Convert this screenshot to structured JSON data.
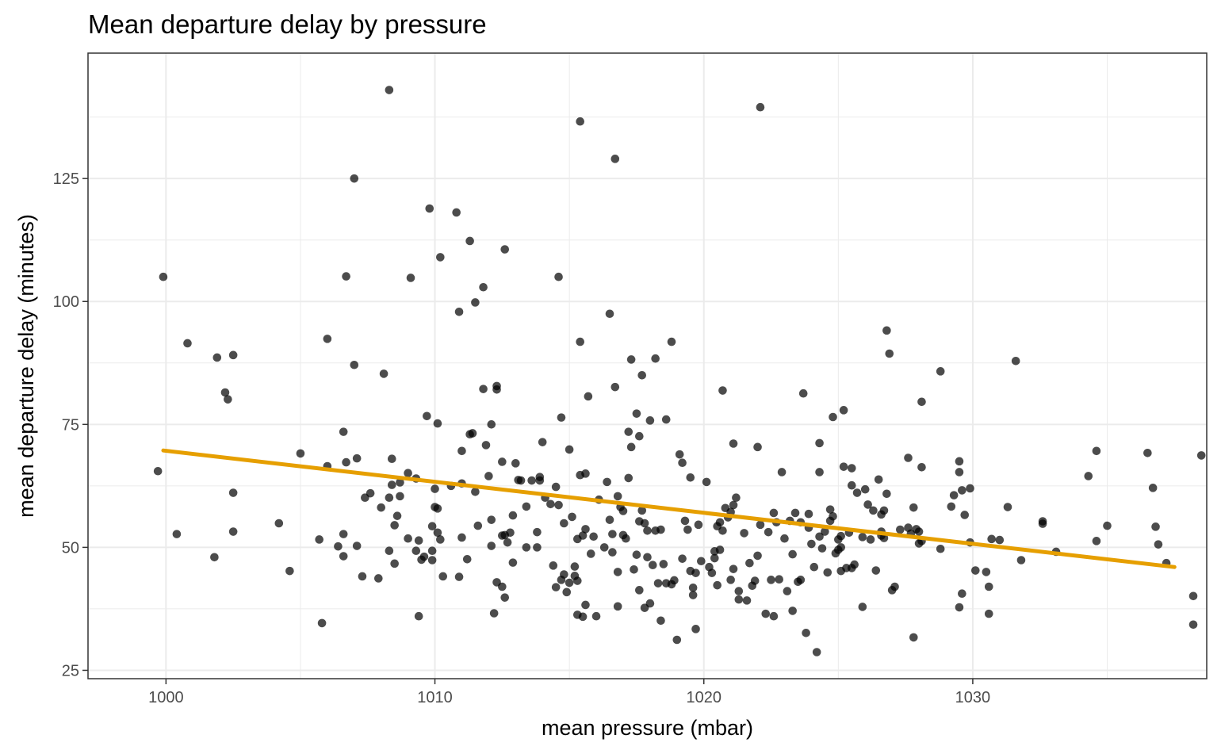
{
  "chart_data": {
    "type": "scatter",
    "title": "Mean departure delay by pressure",
    "xlabel": "mean pressure (mbar)",
    "ylabel": "mean departure delay (minutes)",
    "xlim": [
      997.1,
      1038.7
    ],
    "ylim": [
      23.3,
      150.5
    ],
    "xticks": [
      1000,
      1010,
      1020,
      1030
    ],
    "yticks": [
      25,
      50,
      75,
      100,
      125
    ],
    "grid": true,
    "legend": "none",
    "colors": {
      "points": "#000000",
      "trend": "#E69F00"
    },
    "trend_line": {
      "x": [
        999.9,
        1037.5
      ],
      "y": [
        69.7,
        46.0
      ]
    },
    "points": [
      [
        999.9,
        105.0
      ],
      [
        999.7,
        65.5
      ],
      [
        1000.4,
        52.7
      ],
      [
        1000.8,
        91.5
      ],
      [
        1001.8,
        48.0
      ],
      [
        1001.9,
        88.6
      ],
      [
        1002.2,
        81.5
      ],
      [
        1002.3,
        80.1
      ],
      [
        1002.5,
        89.1
      ],
      [
        1002.5,
        61.1
      ],
      [
        1002.5,
        53.2
      ],
      [
        1004.2,
        54.9
      ],
      [
        1004.6,
        45.2
      ],
      [
        1005.0,
        69.1
      ],
      [
        1005.7,
        51.6
      ],
      [
        1005.8,
        34.6
      ],
      [
        1006.0,
        66.5
      ],
      [
        1006.0,
        92.4
      ],
      [
        1006.4,
        50.2
      ],
      [
        1006.6,
        52.7
      ],
      [
        1006.6,
        73.5
      ],
      [
        1006.6,
        48.2
      ],
      [
        1006.7,
        67.3
      ],
      [
        1006.7,
        105.1
      ],
      [
        1007.0,
        125.0
      ],
      [
        1007.0,
        87.1
      ],
      [
        1007.1,
        50.3
      ],
      [
        1007.1,
        68.1
      ],
      [
        1007.3,
        44.1
      ],
      [
        1007.4,
        60.1
      ],
      [
        1007.6,
        61.0
      ],
      [
        1007.9,
        43.7
      ],
      [
        1008.0,
        58.1
      ],
      [
        1008.1,
        85.3
      ],
      [
        1008.3,
        60.1
      ],
      [
        1008.3,
        49.3
      ],
      [
        1008.4,
        68.0
      ],
      [
        1008.4,
        62.7
      ],
      [
        1008.5,
        54.5
      ],
      [
        1008.5,
        46.7
      ],
      [
        1008.6,
        56.4
      ],
      [
        1008.7,
        60.4
      ],
      [
        1008.7,
        63.2
      ],
      [
        1008.3,
        143.0
      ],
      [
        1009.0,
        65.1
      ],
      [
        1009.0,
        51.8
      ],
      [
        1009.1,
        104.8
      ],
      [
        1009.3,
        64.0
      ],
      [
        1009.3,
        49.3
      ],
      [
        1009.4,
        36.0
      ],
      [
        1009.4,
        51.4
      ],
      [
        1009.5,
        47.5
      ],
      [
        1009.6,
        48.1
      ],
      [
        1009.7,
        76.7
      ],
      [
        1009.8,
        118.9
      ],
      [
        1009.9,
        54.3
      ],
      [
        1009.9,
        49.3
      ],
      [
        1009.9,
        47.4
      ],
      [
        1010.0,
        58.2
      ],
      [
        1010.0,
        61.9
      ],
      [
        1010.1,
        57.9
      ],
      [
        1010.1,
        53.0
      ],
      [
        1010.1,
        75.2
      ],
      [
        1010.2,
        51.6
      ],
      [
        1010.2,
        109.0
      ],
      [
        1010.3,
        44.1
      ],
      [
        1010.6,
        62.5
      ],
      [
        1010.8,
        118.1
      ],
      [
        1010.9,
        97.9
      ],
      [
        1010.9,
        44.0
      ],
      [
        1011.0,
        63.0
      ],
      [
        1011.0,
        69.6
      ],
      [
        1011.0,
        52.0
      ],
      [
        1011.2,
        47.6
      ],
      [
        1011.3,
        112.3
      ],
      [
        1011.3,
        73.0
      ],
      [
        1011.4,
        73.2
      ],
      [
        1011.5,
        61.3
      ],
      [
        1011.5,
        99.8
      ],
      [
        1011.6,
        54.4
      ],
      [
        1011.8,
        102.9
      ],
      [
        1011.8,
        82.2
      ],
      [
        1011.9,
        70.8
      ],
      [
        1012.0,
        64.5
      ],
      [
        1012.1,
        75.0
      ],
      [
        1012.1,
        55.6
      ],
      [
        1012.1,
        50.3
      ],
      [
        1012.2,
        36.6
      ],
      [
        1012.3,
        42.9
      ],
      [
        1012.3,
        82.1
      ],
      [
        1012.3,
        82.8
      ],
      [
        1012.5,
        52.4
      ],
      [
        1012.5,
        67.4
      ],
      [
        1012.5,
        42.0
      ],
      [
        1012.6,
        39.8
      ],
      [
        1012.6,
        52.5
      ],
      [
        1012.6,
        110.6
      ],
      [
        1012.7,
        51.0
      ],
      [
        1012.8,
        53.0
      ],
      [
        1012.9,
        46.9
      ],
      [
        1012.9,
        56.5
      ],
      [
        1013.0,
        67.1
      ],
      [
        1013.1,
        63.7
      ],
      [
        1013.2,
        63.6
      ],
      [
        1013.4,
        50.0
      ],
      [
        1013.4,
        58.3
      ],
      [
        1013.6,
        63.6
      ],
      [
        1013.8,
        53.1
      ],
      [
        1013.8,
        50.0
      ],
      [
        1013.9,
        64.3
      ],
      [
        1013.9,
        63.6
      ],
      [
        1014.0,
        71.4
      ],
      [
        1014.1,
        60.1
      ],
      [
        1014.3,
        58.8
      ],
      [
        1014.4,
        46.3
      ],
      [
        1014.5,
        41.9
      ],
      [
        1014.6,
        58.6
      ],
      [
        1014.7,
        76.4
      ],
      [
        1014.7,
        43.4
      ],
      [
        1014.8,
        54.9
      ],
      [
        1014.9,
        40.9
      ],
      [
        1015.0,
        42.8
      ],
      [
        1015.1,
        56.2
      ],
      [
        1015.2,
        46.1
      ],
      [
        1015.3,
        36.3
      ],
      [
        1015.3,
        51.7
      ],
      [
        1015.4,
        64.7
      ],
      [
        1015.4,
        136.6
      ],
      [
        1015.5,
        35.9
      ],
      [
        1015.6,
        53.7
      ],
      [
        1015.6,
        38.3
      ],
      [
        1014.5,
        62.3
      ],
      [
        1014.6,
        105.0
      ],
      [
        1014.8,
        44.5
      ],
      [
        1015.0,
        69.9
      ],
      [
        1015.2,
        44.2
      ],
      [
        1015.3,
        43.2
      ],
      [
        1015.4,
        91.8
      ],
      [
        1015.5,
        52.4
      ],
      [
        1015.6,
        65.0
      ],
      [
        1015.7,
        80.7
      ],
      [
        1015.8,
        48.7
      ],
      [
        1015.9,
        52.2
      ],
      [
        1016.0,
        36.0
      ],
      [
        1016.1,
        59.7
      ],
      [
        1016.3,
        50.0
      ],
      [
        1016.4,
        63.3
      ],
      [
        1016.5,
        55.6
      ],
      [
        1016.5,
        97.5
      ],
      [
        1016.6,
        49.0
      ],
      [
        1016.6,
        52.7
      ],
      [
        1016.7,
        129.0
      ],
      [
        1016.7,
        82.6
      ],
      [
        1016.8,
        60.4
      ],
      [
        1016.8,
        45.0
      ],
      [
        1016.8,
        38.0
      ],
      [
        1016.9,
        58.2
      ],
      [
        1017.0,
        52.5
      ],
      [
        1017.0,
        57.4
      ],
      [
        1017.1,
        51.8
      ],
      [
        1017.2,
        64.1
      ],
      [
        1017.2,
        73.5
      ],
      [
        1017.3,
        88.2
      ],
      [
        1017.3,
        70.4
      ],
      [
        1017.4,
        45.5
      ],
      [
        1017.5,
        48.5
      ],
      [
        1017.5,
        77.2
      ],
      [
        1017.6,
        55.3
      ],
      [
        1017.6,
        41.3
      ],
      [
        1017.6,
        72.6
      ],
      [
        1017.7,
        57.5
      ],
      [
        1017.7,
        85.0
      ],
      [
        1017.8,
        37.7
      ],
      [
        1017.8,
        54.9
      ],
      [
        1017.9,
        48.0
      ],
      [
        1017.9,
        53.4
      ],
      [
        1018.0,
        38.6
      ],
      [
        1018.0,
        75.8
      ],
      [
        1018.1,
        46.4
      ],
      [
        1018.2,
        88.4
      ],
      [
        1018.2,
        53.4
      ],
      [
        1018.3,
        42.7
      ],
      [
        1018.4,
        35.1
      ],
      [
        1018.4,
        53.6
      ],
      [
        1018.5,
        46.6
      ],
      [
        1018.6,
        76.0
      ],
      [
        1018.6,
        42.7
      ],
      [
        1018.8,
        91.8
      ],
      [
        1018.8,
        42.5
      ],
      [
        1018.9,
        43.3
      ],
      [
        1019.0,
        31.2
      ],
      [
        1019.1,
        68.9
      ],
      [
        1019.2,
        47.7
      ],
      [
        1019.2,
        67.2
      ],
      [
        1019.3,
        55.4
      ],
      [
        1019.4,
        53.6
      ],
      [
        1019.5,
        45.2
      ],
      [
        1019.5,
        64.2
      ],
      [
        1019.6,
        40.3
      ],
      [
        1019.6,
        41.8
      ],
      [
        1019.7,
        44.8
      ],
      [
        1019.7,
        33.4
      ],
      [
        1019.8,
        54.6
      ],
      [
        1019.9,
        47.2
      ],
      [
        1020.1,
        63.3
      ],
      [
        1020.2,
        46.0
      ],
      [
        1020.3,
        44.8
      ],
      [
        1020.4,
        49.2
      ],
      [
        1020.4,
        47.8
      ],
      [
        1020.5,
        42.3
      ],
      [
        1020.5,
        54.3
      ],
      [
        1020.6,
        49.5
      ],
      [
        1020.6,
        55.1
      ],
      [
        1020.7,
        81.9
      ],
      [
        1020.7,
        53.4
      ],
      [
        1020.8,
        58.0
      ],
      [
        1020.9,
        56.1
      ],
      [
        1021.0,
        57.2
      ],
      [
        1021.0,
        43.4
      ],
      [
        1021.1,
        58.6
      ],
      [
        1021.1,
        45.6
      ],
      [
        1021.1,
        71.1
      ],
      [
        1021.2,
        60.1
      ],
      [
        1021.3,
        41.1
      ],
      [
        1021.3,
        39.4
      ],
      [
        1021.5,
        52.9
      ],
      [
        1021.6,
        39.2
      ],
      [
        1021.7,
        46.8
      ],
      [
        1021.8,
        42.2
      ],
      [
        1021.9,
        43.2
      ],
      [
        1022.0,
        48.3
      ],
      [
        1022.0,
        70.4
      ],
      [
        1022.1,
        54.6
      ],
      [
        1022.1,
        139.5
      ],
      [
        1022.3,
        36.5
      ],
      [
        1022.4,
        53.1
      ],
      [
        1022.5,
        43.4
      ],
      [
        1022.6,
        57.0
      ],
      [
        1022.6,
        36.0
      ],
      [
        1022.7,
        55.1
      ],
      [
        1022.8,
        43.5
      ],
      [
        1022.9,
        65.3
      ],
      [
        1023.0,
        51.8
      ],
      [
        1023.1,
        41.1
      ],
      [
        1023.2,
        55.4
      ],
      [
        1023.3,
        48.6
      ],
      [
        1023.3,
        37.1
      ],
      [
        1023.4,
        57.0
      ],
      [
        1023.5,
        43.0
      ],
      [
        1023.6,
        43.4
      ],
      [
        1023.6,
        55.1
      ],
      [
        1023.7,
        81.3
      ],
      [
        1023.8,
        32.6
      ],
      [
        1023.9,
        56.8
      ],
      [
        1023.9,
        54.0
      ],
      [
        1024.0,
        50.7
      ],
      [
        1024.1,
        46.0
      ],
      [
        1024.2,
        28.7
      ],
      [
        1024.3,
        65.3
      ],
      [
        1024.3,
        71.2
      ],
      [
        1024.3,
        52.2
      ],
      [
        1024.4,
        49.8
      ],
      [
        1024.5,
        53.2
      ],
      [
        1024.6,
        44.9
      ],
      [
        1024.7,
        57.7
      ],
      [
        1024.7,
        55.4
      ],
      [
        1024.8,
        76.5
      ],
      [
        1024.8,
        56.3
      ],
      [
        1024.9,
        48.8
      ],
      [
        1025.0,
        51.6
      ],
      [
        1025.0,
        49.5
      ],
      [
        1025.1,
        52.3
      ],
      [
        1025.1,
        50.0
      ],
      [
        1025.1,
        45.2
      ],
      [
        1025.2,
        66.4
      ],
      [
        1025.2,
        77.9
      ],
      [
        1025.3,
        45.8
      ],
      [
        1025.4,
        53.0
      ],
      [
        1025.5,
        45.8
      ],
      [
        1025.5,
        62.6
      ],
      [
        1025.5,
        66.1
      ],
      [
        1025.6,
        46.5
      ],
      [
        1025.7,
        61.1
      ],
      [
        1025.9,
        52.1
      ],
      [
        1025.9,
        37.9
      ],
      [
        1026.0,
        61.8
      ],
      [
        1026.1,
        58.7
      ],
      [
        1026.2,
        51.6
      ],
      [
        1026.3,
        57.5
      ],
      [
        1026.4,
        45.3
      ],
      [
        1026.5,
        63.8
      ],
      [
        1026.6,
        53.2
      ],
      [
        1026.6,
        52.4
      ],
      [
        1026.6,
        56.7
      ],
      [
        1026.7,
        51.9
      ],
      [
        1026.7,
        57.5
      ],
      [
        1026.8,
        60.9
      ],
      [
        1026.8,
        94.1
      ],
      [
        1026.9,
        89.4
      ],
      [
        1027.0,
        41.3
      ],
      [
        1027.1,
        42.0
      ],
      [
        1027.3,
        53.6
      ],
      [
        1027.6,
        54.0
      ],
      [
        1027.6,
        68.2
      ],
      [
        1027.7,
        52.8
      ],
      [
        1027.8,
        31.7
      ],
      [
        1027.8,
        58.1
      ],
      [
        1027.9,
        53.7
      ],
      [
        1028.0,
        53.2
      ],
      [
        1028.0,
        50.8
      ],
      [
        1028.1,
        51.3
      ],
      [
        1028.1,
        66.3
      ],
      [
        1028.1,
        79.6
      ],
      [
        1028.8,
        85.8
      ],
      [
        1028.8,
        49.7
      ],
      [
        1029.2,
        58.3
      ],
      [
        1029.3,
        60.6
      ],
      [
        1029.5,
        67.5
      ],
      [
        1029.5,
        65.3
      ],
      [
        1029.5,
        37.8
      ],
      [
        1029.6,
        40.6
      ],
      [
        1029.6,
        61.6
      ],
      [
        1029.7,
        56.6
      ],
      [
        1029.9,
        51.0
      ],
      [
        1029.9,
        62.0
      ],
      [
        1030.1,
        45.3
      ],
      [
        1030.5,
        45.0
      ],
      [
        1030.6,
        36.5
      ],
      [
        1030.6,
        42.0
      ],
      [
        1030.7,
        51.7
      ],
      [
        1031.0,
        51.5
      ],
      [
        1031.3,
        58.2
      ],
      [
        1031.6,
        87.9
      ],
      [
        1031.8,
        47.4
      ],
      [
        1032.6,
        55.3
      ],
      [
        1032.6,
        54.8
      ],
      [
        1033.1,
        49.1
      ],
      [
        1034.3,
        64.5
      ],
      [
        1034.6,
        51.3
      ],
      [
        1034.6,
        69.6
      ],
      [
        1035.0,
        54.4
      ],
      [
        1036.5,
        69.2
      ],
      [
        1036.7,
        62.1
      ],
      [
        1036.8,
        54.2
      ],
      [
        1036.9,
        50.6
      ],
      [
        1037.2,
        46.8
      ],
      [
        1038.2,
        40.1
      ],
      [
        1038.2,
        34.3
      ],
      [
        1038.5,
        68.7
      ]
    ]
  }
}
